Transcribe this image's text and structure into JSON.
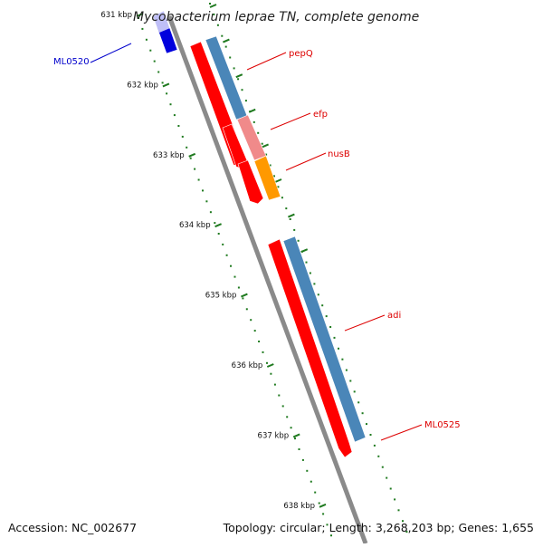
{
  "title": "Mycobacterium leprae TN, complete genome",
  "colors": {
    "backbone": "#8a8a8a",
    "tick": "#1f7a1f",
    "gene_red": "#ff0000",
    "gene_blue": "#4a86b8",
    "gene_pink": "#f08a8a",
    "gene_orange": "#ff9900",
    "gene_navy": "#0000dd",
    "label_red": "#dd0000",
    "label_blue": "#0000cc"
  },
  "ticks": [
    {
      "label": "631 kbp"
    },
    {
      "label": "632 kbp"
    },
    {
      "label": "633 kbp"
    },
    {
      "label": "634 kbp"
    },
    {
      "label": "635 kbp"
    },
    {
      "label": "636 kbp"
    },
    {
      "label": "637 kbp"
    },
    {
      "label": "638 kbp"
    }
  ],
  "genes": [
    {
      "name": "pepQ",
      "track": "reverse",
      "color": "red"
    },
    {
      "name": "pepQ",
      "track": "forward",
      "color": "blue"
    },
    {
      "name": "efp",
      "track": "reverse",
      "color": "red"
    },
    {
      "name": "efp",
      "track": "forward",
      "color": "pink"
    },
    {
      "name": "nusB",
      "track": "reverse",
      "color": "red"
    },
    {
      "name": "nusB",
      "track": "forward",
      "color": "orange"
    },
    {
      "name": "adi",
      "track": "reverse",
      "color": "red"
    },
    {
      "name": "adi",
      "track": "forward",
      "color": "blue"
    },
    {
      "name": "ML0520",
      "track": "outer-left",
      "color": "navy"
    }
  ],
  "labels": {
    "pepQ": "pepQ",
    "efp": "efp",
    "nusB": "nusB",
    "adi": "adi",
    "ML0525": "ML0525",
    "ML0520": "ML0520"
  },
  "footer": {
    "accession": "Accession: NC_002677",
    "stats": "Topology: circular; Length: 3,268,203 bp; Genes: 1,655"
  }
}
